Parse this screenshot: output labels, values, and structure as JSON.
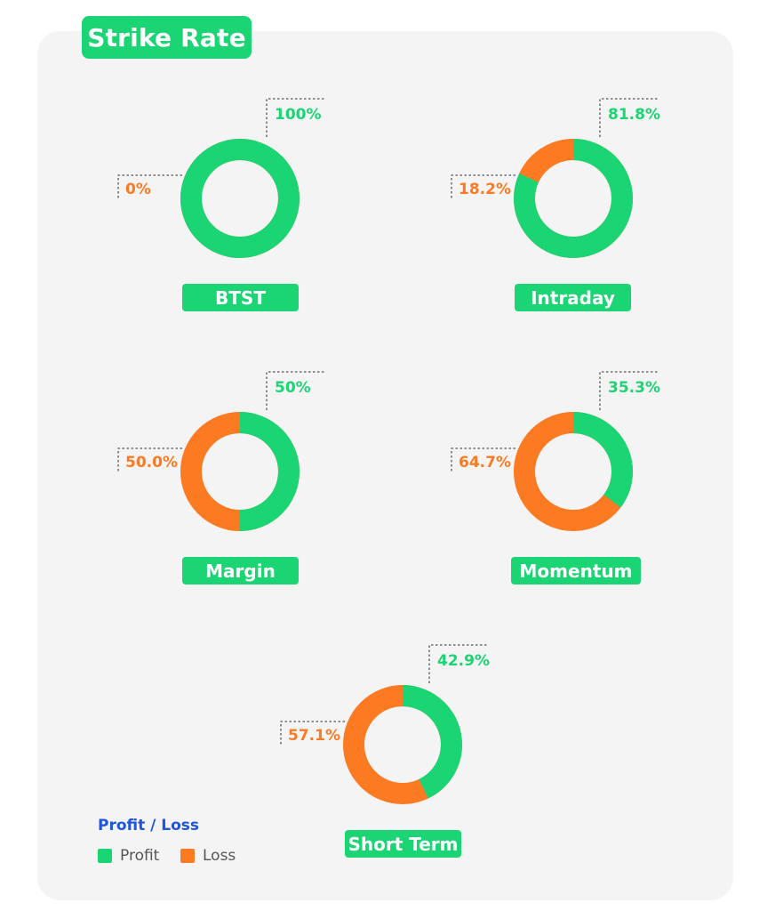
{
  "title": "Strike Rate",
  "colors": {
    "profit": "#1bd473",
    "loss": "#fb7a22",
    "legend_title": "#1e55d9",
    "panel": "#f4f4f4"
  },
  "legend": {
    "title": "Profit / Loss",
    "items": [
      {
        "label": "Profit",
        "color": "#1bd473"
      },
      {
        "label": "Loss",
        "color": "#fb7a22"
      }
    ]
  },
  "chart_data": [
    {
      "type": "pie",
      "title": "BTST",
      "categories": [
        "Profit",
        "Loss"
      ],
      "values": [
        100,
        0
      ],
      "labels": [
        "100%",
        "0%"
      ]
    },
    {
      "type": "pie",
      "title": "Intraday",
      "categories": [
        "Profit",
        "Loss"
      ],
      "values": [
        81.8,
        18.2
      ],
      "labels": [
        "81.8%",
        "18.2%"
      ]
    },
    {
      "type": "pie",
      "title": "Margin",
      "categories": [
        "Profit",
        "Loss"
      ],
      "values": [
        50,
        50.0
      ],
      "labels": [
        "50%",
        "50.0%"
      ]
    },
    {
      "type": "pie",
      "title": "Momentum",
      "categories": [
        "Profit",
        "Loss"
      ],
      "values": [
        35.3,
        64.7
      ],
      "labels": [
        "35.3%",
        "64.7%"
      ]
    },
    {
      "type": "pie",
      "title": "Short Term",
      "categories": [
        "Profit",
        "Loss"
      ],
      "values": [
        42.9,
        57.1
      ],
      "labels": [
        "42.9%",
        "57.1%"
      ]
    }
  ]
}
